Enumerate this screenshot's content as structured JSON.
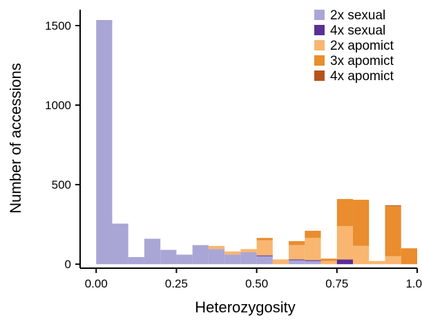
{
  "chart_data": {
    "type": "bar",
    "subtype": "stacked-histogram",
    "xlabel": "Heterozygosity",
    "ylabel": "Number of accessions",
    "x_ticks": [
      "0.00",
      "0.25",
      "0.50",
      "0.75",
      "1.00"
    ],
    "y_ticks": [
      "0",
      "500",
      "1000",
      "1500"
    ],
    "xlim": [
      -0.05,
      1.0
    ],
    "ylim": [
      -25,
      1600
    ],
    "bin_width": 0.05,
    "bins": [
      0.0,
      0.05,
      0.1,
      0.15,
      0.2,
      0.25,
      0.3,
      0.35,
      0.4,
      0.45,
      0.5,
      0.55,
      0.6,
      0.65,
      0.7,
      0.75,
      0.8,
      0.85,
      0.9,
      0.95
    ],
    "legend_position": "top-right",
    "series": [
      {
        "name": "2x sexual",
        "color": "#a9a6d6",
        "values": [
          1535,
          255,
          45,
          160,
          90,
          60,
          120,
          95,
          60,
          75,
          50,
          0,
          25,
          20,
          0,
          0,
          0,
          0,
          0,
          0
        ]
      },
      {
        "name": "4x sexual",
        "color": "#5b2f94",
        "values": [
          0,
          0,
          0,
          0,
          0,
          0,
          0,
          0,
          0,
          0,
          5,
          0,
          5,
          5,
          0,
          30,
          0,
          0,
          0,
          0
        ]
      },
      {
        "name": "2x apomict",
        "color": "#f8b671",
        "values": [
          0,
          0,
          0,
          0,
          0,
          0,
          0,
          20,
          20,
          20,
          95,
          30,
          90,
          140,
          20,
          210,
          115,
          20,
          50,
          0
        ]
      },
      {
        "name": "3x apomict",
        "color": "#e98d2e",
        "values": [
          0,
          0,
          0,
          0,
          0,
          0,
          0,
          0,
          0,
          0,
          15,
          0,
          25,
          45,
          15,
          170,
          290,
          0,
          315,
          100
        ]
      },
      {
        "name": "4x apomict",
        "color": "#b5541c",
        "values": [
          0,
          0,
          0,
          0,
          0,
          0,
          0,
          0,
          0,
          0,
          0,
          0,
          0,
          0,
          0,
          0,
          0,
          0,
          5,
          0
        ]
      }
    ]
  }
}
